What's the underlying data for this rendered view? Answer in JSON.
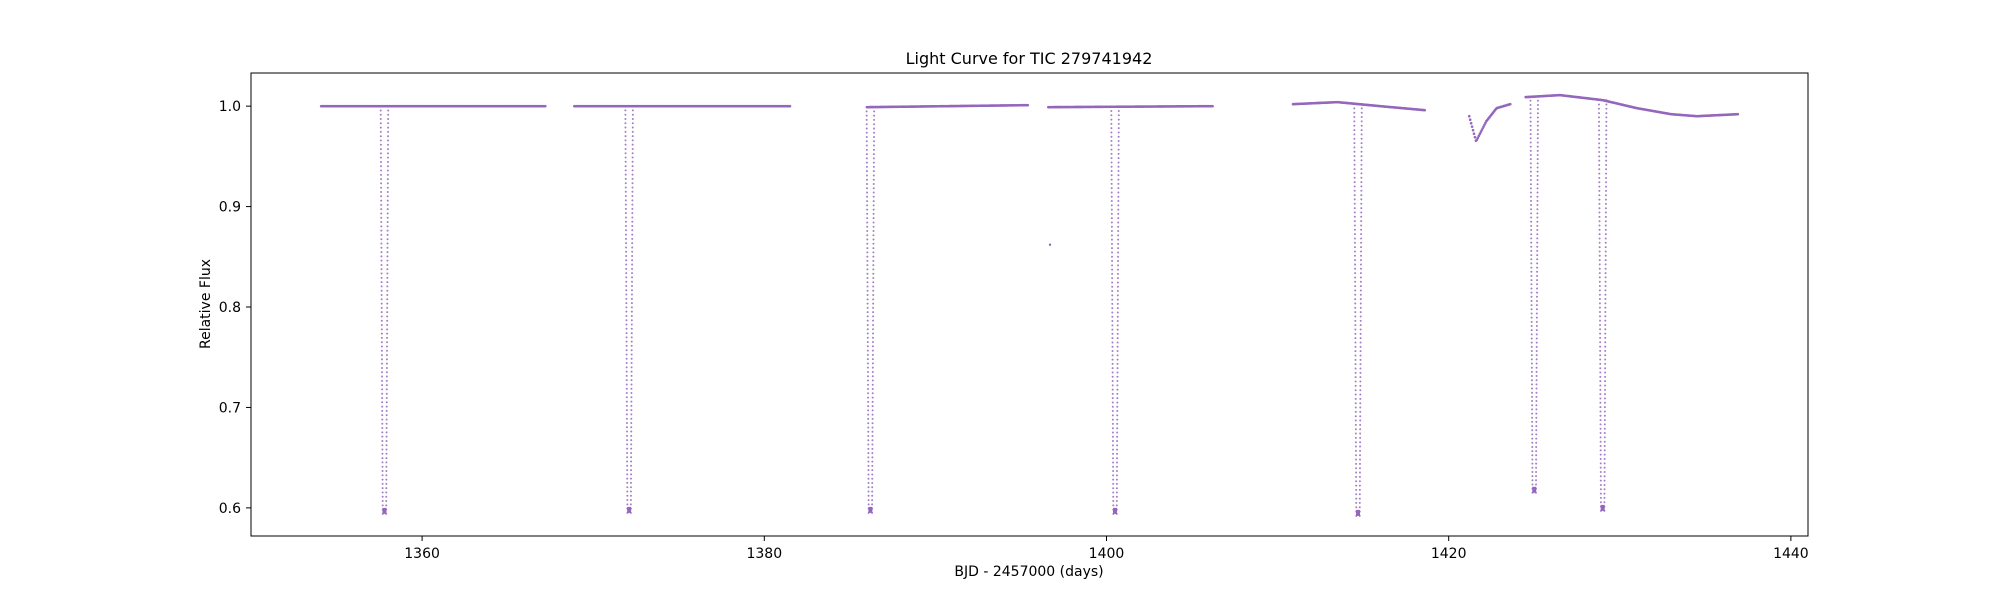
{
  "chart_data": {
    "type": "scatter",
    "title": "Light Curve for TIC 279741942",
    "xlabel": "BJD - 2457000 (days)",
    "ylabel": "Relative Flux",
    "xlim": [
      1350,
      1441
    ],
    "ylim": [
      0.572,
      1.033
    ],
    "xticks": [
      1360,
      1380,
      1400,
      1420,
      1440
    ],
    "yticks": [
      0.6,
      0.7,
      0.8,
      0.9,
      1.0
    ],
    "xtick_labels": [
      "1360",
      "1380",
      "1400",
      "1420",
      "1440"
    ],
    "ytick_labels": [
      "0.6",
      "0.7",
      "0.8",
      "0.9",
      "1.0"
    ],
    "grid": false,
    "marker_color": "#9467bd",
    "segments": [
      {
        "start": 1354.1,
        "end": 1367.2,
        "flux": [
          [
            1354.1,
            1.0
          ],
          [
            1367.2,
            1.0
          ]
        ]
      },
      {
        "start": 1368.9,
        "end": 1381.5,
        "flux": [
          [
            1368.9,
            1.0
          ],
          [
            1381.5,
            1.0
          ]
        ]
      },
      {
        "start": 1386.0,
        "end": 1395.4,
        "flux": [
          [
            1386.0,
            0.999
          ],
          [
            1395.4,
            1.001
          ]
        ]
      },
      {
        "start": 1396.6,
        "end": 1406.2,
        "flux": [
          [
            1396.6,
            0.999
          ],
          [
            1406.2,
            1.0
          ]
        ]
      },
      {
        "start": 1410.9,
        "end": 1418.6,
        "flux": [
          [
            1410.9,
            1.002
          ],
          [
            1413.5,
            1.004
          ],
          [
            1416.0,
            1.0
          ],
          [
            1418.6,
            0.996
          ]
        ]
      },
      {
        "start": 1421.2,
        "end": 1423.6,
        "flux": [
          [
            1421.2,
            0.99
          ],
          [
            1421.6,
            0.965
          ],
          [
            1422.2,
            0.985
          ],
          [
            1422.8,
            0.998
          ],
          [
            1423.6,
            1.002
          ]
        ]
      },
      {
        "start": 1424.5,
        "end": 1436.9,
        "flux": [
          [
            1424.5,
            1.009
          ],
          [
            1426.5,
            1.011
          ],
          [
            1429.0,
            1.006
          ],
          [
            1431.0,
            0.998
          ],
          [
            1433.0,
            0.992
          ],
          [
            1434.5,
            0.99
          ],
          [
            1436.9,
            0.992
          ]
        ]
      }
    ],
    "transits": [
      {
        "center": 1357.8,
        "depth_min": 0.594
      },
      {
        "center": 1372.1,
        "depth_min": 0.595
      },
      {
        "center": 1386.2,
        "depth_min": 0.595
      },
      {
        "center": 1400.5,
        "depth_min": 0.594
      },
      {
        "center": 1414.7,
        "depth_min": 0.592
      },
      {
        "center": 1425.0,
        "depth_min": 0.615
      },
      {
        "center": 1429.0,
        "depth_min": 0.597
      }
    ],
    "isolated_points": [
      {
        "x": 1396.7,
        "y": 0.862
      }
    ]
  }
}
